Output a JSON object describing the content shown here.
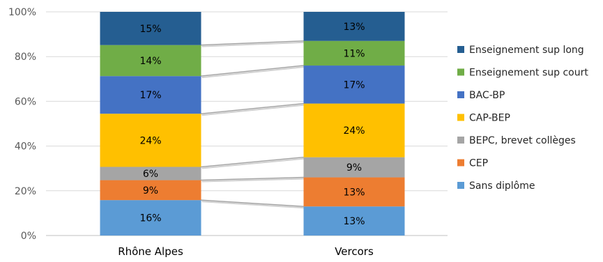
{
  "chart_data": {
    "type": "bar",
    "stacked": true,
    "percent": true,
    "categories": [
      "Rhône Alpes",
      "Vercors"
    ],
    "series": [
      {
        "name": "Sans diplôme",
        "color": "#5B9BD5",
        "values": [
          16,
          13
        ]
      },
      {
        "name": "CEP",
        "color": "#ED7D31",
        "values": [
          9,
          13
        ]
      },
      {
        "name": "BEPC, brevet collèges",
        "color": "#A5A5A5",
        "values": [
          6,
          9
        ]
      },
      {
        "name": "CAP-BEP",
        "color": "#FFC000",
        "values": [
          24,
          24
        ]
      },
      {
        "name": "BAC-BP",
        "color": "#4472C4",
        "values": [
          17,
          17
        ]
      },
      {
        "name": "Enseignement sup court",
        "color": "#70AD47",
        "values": [
          14,
          11
        ]
      },
      {
        "name": "Enseignement sup long",
        "color": "#255E91",
        "values": [
          15,
          13
        ]
      }
    ],
    "data_labels": [
      [
        "16%",
        "13%"
      ],
      [
        "9%",
        "13%"
      ],
      [
        "6%",
        "9%"
      ],
      [
        "24%",
        "24%"
      ],
      [
        "17%",
        "17%"
      ],
      [
        "14%",
        "11%"
      ],
      [
        "15%",
        "13%"
      ]
    ],
    "yticks": [
      "0%",
      "20%",
      "40%",
      "60%",
      "80%",
      "100%"
    ],
    "ylim": [
      0,
      100
    ],
    "series_lines": true,
    "grid": true,
    "legend": "right",
    "title": "",
    "xlabel": "",
    "ylabel": ""
  }
}
